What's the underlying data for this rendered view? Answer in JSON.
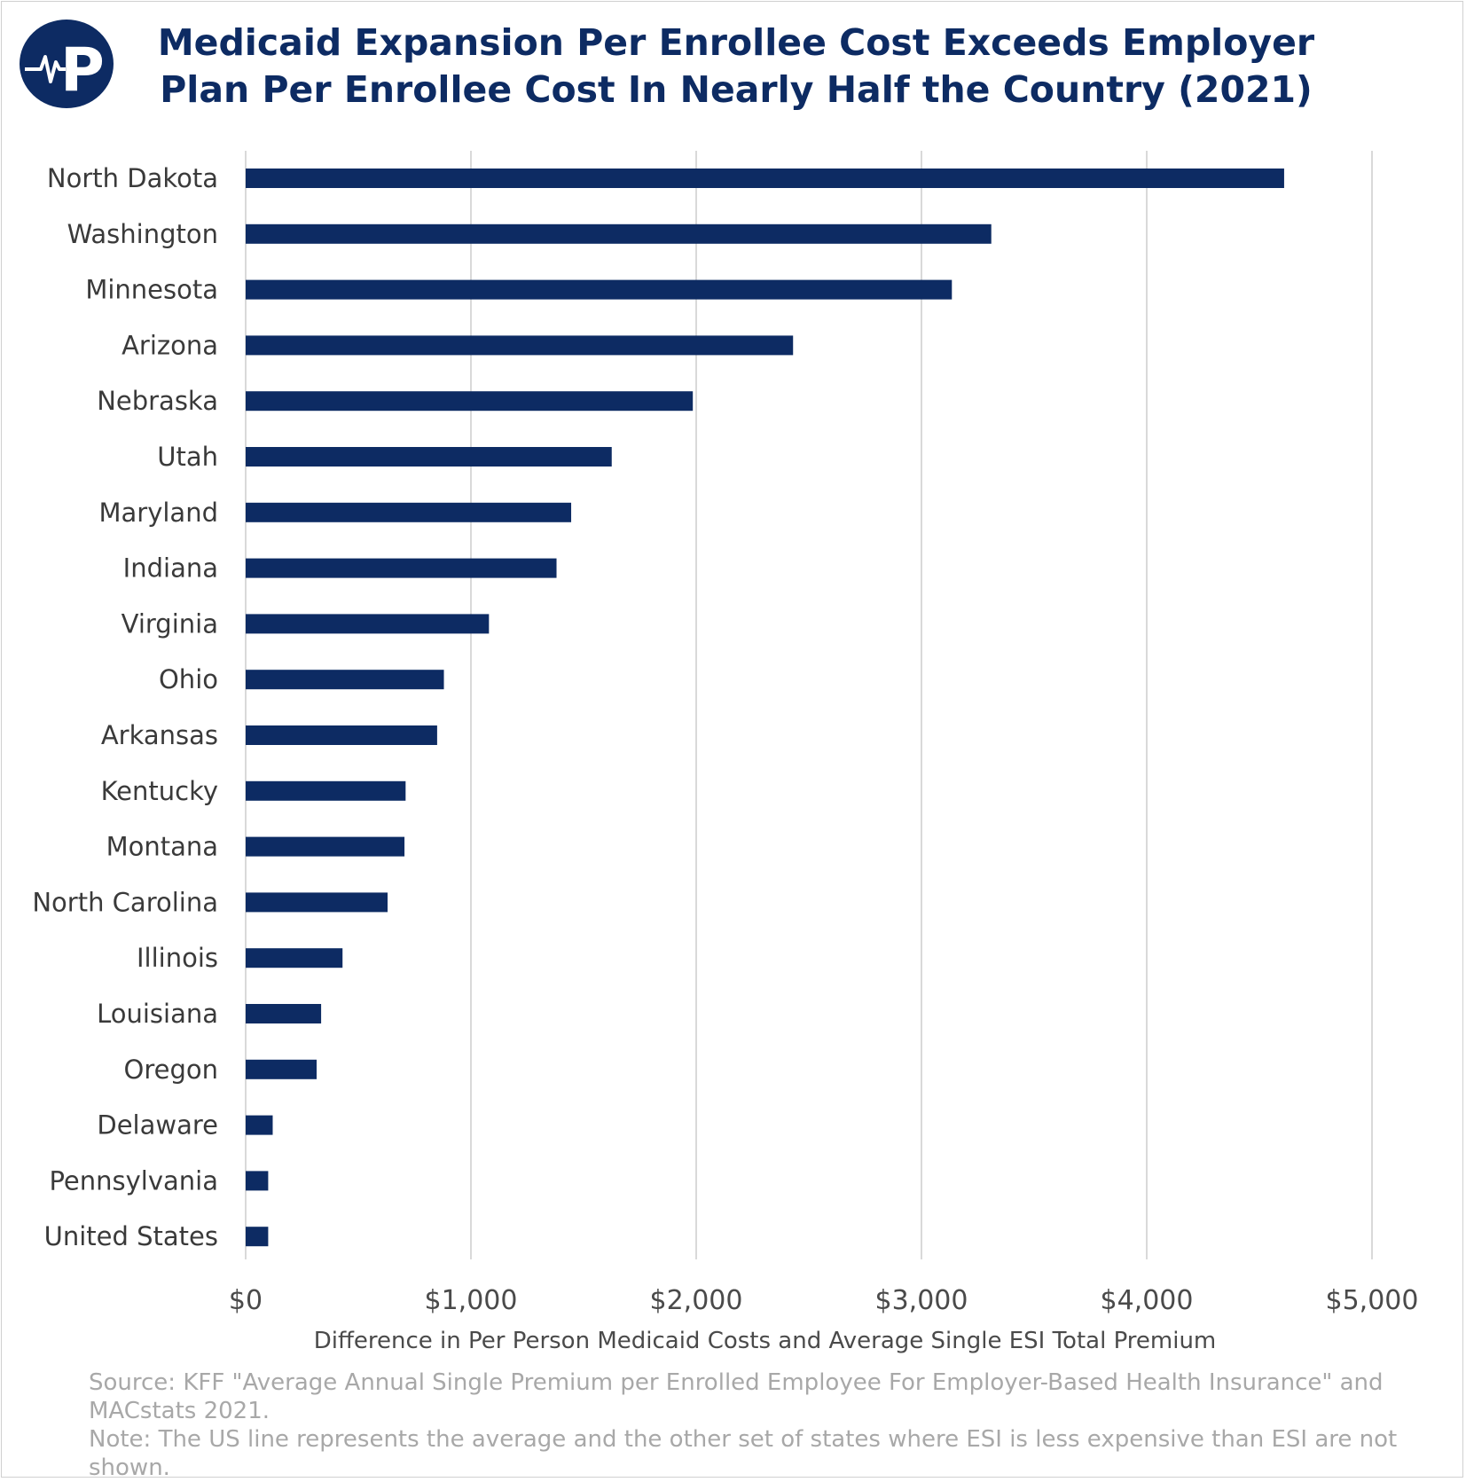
{
  "title_line1": "Medicaid Expansion Per Enrollee Cost Exceeds Employer",
  "title_line2": "Plan Per Enrollee Cost In Nearly Half the Country (2021)",
  "logo_letter": "P",
  "colors": {
    "bar": "#0d2b63",
    "title": "#0d2b63",
    "grid": "#d9d9d9",
    "logo_bg": "#0d2b63"
  },
  "source_text": "Source: KFF \"Average Annual Single Premium per Enrolled Employee For Employer-Based Health Insurance\" and MACstats 2021.",
  "note_text": "Note:  The US line represents the average and the other set of states where ESI is less expensive than ESI are not shown.",
  "chart_data": {
    "type": "bar",
    "orientation": "horizontal",
    "xlabel": "Difference in Per Person Medicaid Costs and Average Single ESI Total Premium",
    "xlim": [
      0,
      5000
    ],
    "xticks": [
      0,
      1000,
      2000,
      3000,
      4000,
      5000
    ],
    "xtick_labels": [
      "$0",
      "$1,000",
      "$2,000",
      "$3,000",
      "$4,000",
      "$5,000"
    ],
    "grid": true,
    "categories": [
      "North Dakota",
      "Washington",
      "Minnesota",
      "Arizona",
      "Nebraska",
      "Utah",
      "Maryland",
      "Indiana",
      "Virginia",
      "Ohio",
      "Arkansas",
      "Kentucky",
      "Montana",
      "North Carolina",
      "Illinois",
      "Louisiana",
      "Oregon",
      "Delaware",
      "Pennsylvania",
      "United States"
    ],
    "values": [
      4610,
      3310,
      3135,
      2430,
      1985,
      1625,
      1445,
      1380,
      1080,
      880,
      850,
      710,
      705,
      630,
      430,
      335,
      315,
      120,
      100,
      100
    ]
  }
}
